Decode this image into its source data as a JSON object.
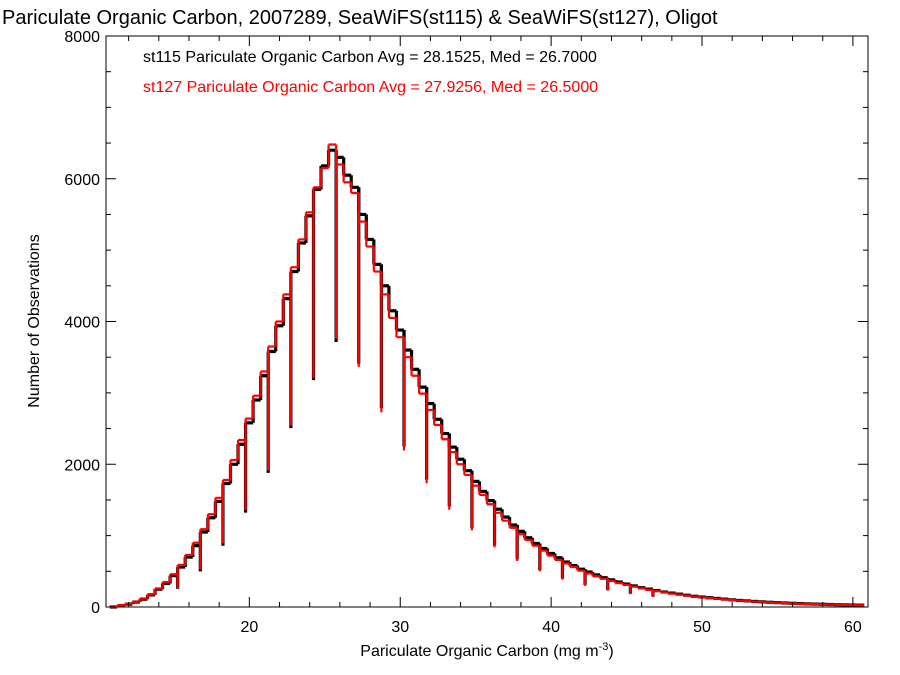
{
  "chart_data": {
    "type": "histogram",
    "title": "Pariculate Organic Carbon, 2007289, SeaWiFS(st115) & SeaWiFS(st127), Oligot",
    "xlabel": "Pariculate Organic Carbon (mg m",
    "xlabel_sup": "-3",
    "xlabel_suffix": ")",
    "ylabel": "Number of Observations",
    "xlim": [
      10.5,
      61
    ],
    "ylim": [
      0,
      8000
    ],
    "x_ticks": [
      20,
      30,
      40,
      50,
      60
    ],
    "y_ticks": [
      0,
      2000,
      4000,
      6000,
      8000
    ],
    "x_tick_labels": [
      "20",
      "30",
      "40",
      "50",
      "60"
    ],
    "y_tick_labels": [
      "0",
      "2000",
      "4000",
      "6000",
      "8000"
    ],
    "legend": [
      {
        "text": "st115 Pariculate Organic Carbon Avg = 28.1525, Med = 26.7000",
        "color": "#000000"
      },
      {
        "text": "st127 Pariculate Organic Carbon Avg = 27.9256, Med = 26.5000",
        "color": "#ff0000"
      }
    ],
    "legend_placement": "top-left",
    "grid": false,
    "bin_width": 0.5,
    "dip_period": 3,
    "dip_offset": 2,
    "series": [
      {
        "name": "st115",
        "color": "#000000",
        "bins": [
          [
            11,
            0
          ],
          [
            11.5,
            20
          ],
          [
            12,
            40
          ],
          [
            12.5,
            70
          ],
          [
            13,
            110
          ],
          [
            13.5,
            170
          ],
          [
            14,
            250
          ],
          [
            14.5,
            330
          ],
          [
            15,
            440
          ],
          [
            15.5,
            560
          ],
          [
            16,
            700
          ],
          [
            16.5,
            860
          ],
          [
            17,
            1050
          ],
          [
            17.5,
            1250
          ],
          [
            18,
            1480
          ],
          [
            18.5,
            1730
          ],
          [
            19,
            2000
          ],
          [
            19.5,
            2280
          ],
          [
            20,
            2580
          ],
          [
            20.5,
            2900
          ],
          [
            21,
            3240
          ],
          [
            21.5,
            3580
          ],
          [
            22,
            3940
          ],
          [
            22.5,
            4320
          ],
          [
            23,
            4700
          ],
          [
            23.5,
            5100
          ],
          [
            24,
            5480
          ],
          [
            24.5,
            5850
          ],
          [
            25,
            6180
          ],
          [
            25.5,
            6400
          ],
          [
            26,
            6300
          ],
          [
            26.5,
            6050
          ],
          [
            27,
            5880
          ],
          [
            27.5,
            5500
          ],
          [
            28,
            5150
          ],
          [
            28.5,
            4800
          ],
          [
            29,
            4500
          ],
          [
            29.5,
            4150
          ],
          [
            30,
            3880
          ],
          [
            30.5,
            3600
          ],
          [
            31,
            3330
          ],
          [
            31.5,
            3080
          ],
          [
            32,
            2850
          ],
          [
            32.5,
            2630
          ],
          [
            33,
            2430
          ],
          [
            33.5,
            2240
          ],
          [
            34,
            2070
          ],
          [
            34.5,
            1910
          ],
          [
            35,
            1760
          ],
          [
            35.5,
            1620
          ],
          [
            36,
            1490
          ],
          [
            36.5,
            1370
          ],
          [
            37,
            1260
          ],
          [
            37.5,
            1150
          ],
          [
            38,
            1060
          ],
          [
            38.5,
            970
          ],
          [
            39,
            890
          ],
          [
            39.5,
            820
          ],
          [
            40,
            750
          ],
          [
            40.5,
            690
          ],
          [
            41,
            630
          ],
          [
            41.5,
            580
          ],
          [
            42,
            530
          ],
          [
            42.5,
            490
          ],
          [
            43,
            450
          ],
          [
            43.5,
            410
          ],
          [
            44,
            380
          ],
          [
            44.5,
            350
          ],
          [
            45,
            320
          ],
          [
            45.5,
            295
          ],
          [
            46,
            270
          ],
          [
            46.5,
            250
          ],
          [
            47,
            230
          ],
          [
            47.5,
            210
          ],
          [
            48,
            195
          ],
          [
            48.5,
            180
          ],
          [
            49,
            165
          ],
          [
            49.5,
            150
          ],
          [
            50,
            140
          ],
          [
            50.5,
            130
          ],
          [
            51,
            120
          ],
          [
            51.5,
            110
          ],
          [
            52,
            100
          ],
          [
            52.5,
            92
          ],
          [
            53,
            85
          ],
          [
            53.5,
            78
          ],
          [
            54,
            72
          ],
          [
            54.5,
            66
          ],
          [
            55,
            61
          ],
          [
            55.5,
            56
          ],
          [
            56,
            52
          ],
          [
            56.5,
            48
          ],
          [
            57,
            44
          ],
          [
            57.5,
            41
          ],
          [
            58,
            38
          ],
          [
            58.5,
            35
          ],
          [
            59,
            32
          ],
          [
            59.5,
            30
          ],
          [
            60,
            28
          ],
          [
            60.5,
            26
          ]
        ]
      },
      {
        "name": "st127",
        "color": "#ff0000",
        "bins": [
          [
            11,
            0
          ],
          [
            11.5,
            25
          ],
          [
            12,
            45
          ],
          [
            12.5,
            75
          ],
          [
            13,
            120
          ],
          [
            13.5,
            180
          ],
          [
            14,
            260
          ],
          [
            14.5,
            350
          ],
          [
            15,
            460
          ],
          [
            15.5,
            590
          ],
          [
            16,
            730
          ],
          [
            16.5,
            900
          ],
          [
            17,
            1090
          ],
          [
            17.5,
            1300
          ],
          [
            18,
            1530
          ],
          [
            18.5,
            1780
          ],
          [
            19,
            2060
          ],
          [
            19.5,
            2340
          ],
          [
            20,
            2640
          ],
          [
            20.5,
            2960
          ],
          [
            21,
            3300
          ],
          [
            21.5,
            3650
          ],
          [
            22,
            4000
          ],
          [
            22.5,
            4380
          ],
          [
            23,
            4760
          ],
          [
            23.5,
            5150
          ],
          [
            24,
            5530
          ],
          [
            24.5,
            5880
          ],
          [
            25,
            6150
          ],
          [
            25.5,
            6480
          ],
          [
            26,
            6200
          ],
          [
            26.5,
            5950
          ],
          [
            27,
            5800
          ],
          [
            27.5,
            5400
          ],
          [
            28,
            5050
          ],
          [
            28.5,
            4700
          ],
          [
            29,
            4380
          ],
          [
            29.5,
            4050
          ],
          [
            30,
            3780
          ],
          [
            30.5,
            3500
          ],
          [
            31,
            3240
          ],
          [
            31.5,
            2990
          ],
          [
            32,
            2760
          ],
          [
            32.5,
            2550
          ],
          [
            33,
            2350
          ],
          [
            33.5,
            2170
          ],
          [
            34,
            2000
          ],
          [
            34.5,
            1850
          ],
          [
            35,
            1700
          ],
          [
            35.5,
            1570
          ],
          [
            36,
            1440
          ],
          [
            36.5,
            1320
          ],
          [
            37,
            1210
          ],
          [
            37.5,
            1110
          ],
          [
            38,
            1020
          ],
          [
            38.5,
            940
          ],
          [
            39,
            860
          ],
          [
            39.5,
            790
          ],
          [
            40,
            720
          ],
          [
            40.5,
            660
          ],
          [
            41,
            610
          ],
          [
            41.5,
            560
          ],
          [
            42,
            510
          ],
          [
            42.5,
            470
          ],
          [
            43,
            430
          ],
          [
            43.5,
            395
          ],
          [
            44,
            365
          ],
          [
            44.5,
            335
          ],
          [
            45,
            310
          ],
          [
            45.5,
            285
          ],
          [
            46,
            262
          ],
          [
            46.5,
            240
          ],
          [
            47,
            222
          ],
          [
            47.5,
            205
          ],
          [
            48,
            188
          ],
          [
            48.5,
            173
          ],
          [
            49,
            160
          ],
          [
            49.5,
            146
          ],
          [
            50,
            135
          ],
          [
            50.5,
            125
          ],
          [
            51,
            115
          ],
          [
            51.5,
            106
          ],
          [
            52,
            97
          ],
          [
            52.5,
            90
          ],
          [
            53,
            82
          ],
          [
            53.5,
            76
          ],
          [
            54,
            70
          ],
          [
            54.5,
            64
          ],
          [
            55,
            59
          ],
          [
            55.5,
            54
          ],
          [
            56,
            50
          ],
          [
            56.5,
            46
          ],
          [
            57,
            43
          ],
          [
            57.5,
            40
          ],
          [
            58,
            37
          ],
          [
            58.5,
            34
          ],
          [
            59,
            31
          ],
          [
            59.5,
            29
          ],
          [
            60,
            27
          ],
          [
            60.5,
            25
          ]
        ]
      }
    ]
  }
}
